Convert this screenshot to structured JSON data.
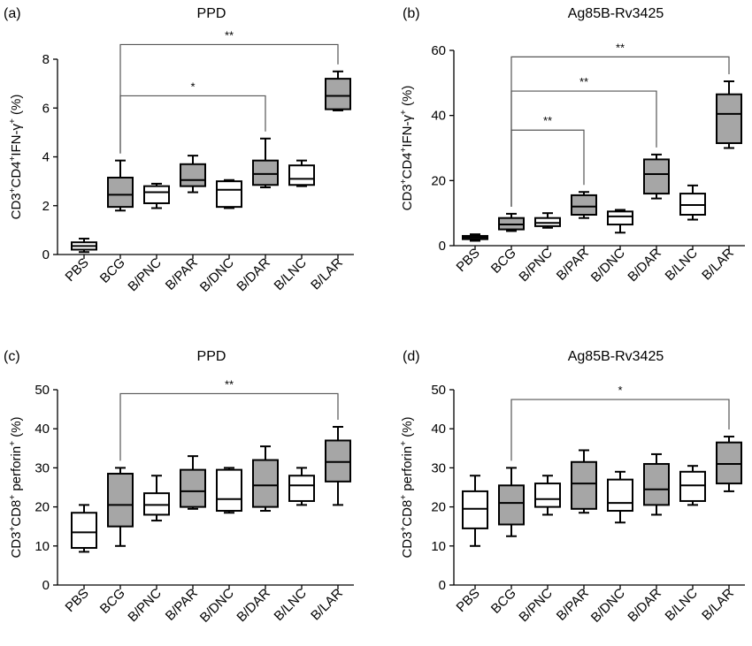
{
  "colors": {
    "filled": "#a6a6a6",
    "empty": "#ffffff",
    "stroke": "#000000",
    "bracket": "#555555"
  },
  "chart_data": [
    {
      "type": "box",
      "panel": "(a)",
      "title": "PPD",
      "ylabel": {
        "main": "CD3",
        "s1": "+",
        "mid": "CD4",
        "s2": "+",
        "rest": "IFN-γ",
        "s3": "+",
        "end": " (%)"
      },
      "ylim": [
        0,
        8
      ],
      "yticks": [
        0,
        2,
        4,
        6,
        8
      ],
      "categories": [
        "PBS",
        "BCG",
        "B/PNC",
        "B/PAR",
        "B/DNC",
        "B/DAR",
        "B/LNC",
        "B/LAR"
      ],
      "filled": [
        false,
        true,
        false,
        true,
        false,
        true,
        false,
        true
      ],
      "boxes": [
        {
          "min": 0.1,
          "q1": 0.2,
          "median": 0.35,
          "q3": 0.5,
          "max": 0.65
        },
        {
          "min": 1.8,
          "q1": 1.95,
          "median": 2.45,
          "q3": 3.15,
          "max": 3.85
        },
        {
          "min": 1.9,
          "q1": 2.1,
          "median": 2.55,
          "q3": 2.8,
          "max": 2.9
        },
        {
          "min": 2.55,
          "q1": 2.8,
          "median": 3.05,
          "q3": 3.7,
          "max": 4.05
        },
        {
          "min": 1.9,
          "q1": 1.95,
          "median": 2.65,
          "q3": 3.0,
          "max": 3.05
        },
        {
          "min": 2.75,
          "q1": 2.85,
          "median": 3.3,
          "q3": 3.85,
          "max": 4.75
        },
        {
          "min": 2.8,
          "q1": 2.85,
          "median": 3.1,
          "q3": 3.65,
          "max": 3.85
        },
        {
          "min": 5.9,
          "q1": 5.95,
          "median": 6.5,
          "q3": 7.2,
          "max": 7.5
        }
      ],
      "brackets": [
        {
          "from": 1,
          "to": 7,
          "y": 8.6,
          "label": "**"
        },
        {
          "from": 1,
          "to": 5,
          "y": 6.5,
          "label": "*"
        }
      ]
    },
    {
      "type": "box",
      "panel": "(b)",
      "title": "Ag85B-Rv3425",
      "ylabel": {
        "main": "CD3",
        "s1": "+",
        "mid": "CD4",
        "s2": "+",
        "rest": "IFN-γ",
        "s3": "+",
        "end": " (%)"
      },
      "ylim": [
        0,
        60
      ],
      "yticks": [
        0,
        20,
        40,
        60
      ],
      "categories": [
        "PBS",
        "BCG",
        "B/PNC",
        "B/PAR",
        "B/DNC",
        "B/DAR",
        "B/LNC",
        "B/LAR"
      ],
      "filled": [
        true,
        true,
        false,
        true,
        false,
        true,
        false,
        true
      ],
      "boxes": [
        {
          "min": 1.5,
          "q1": 2.0,
          "median": 2.5,
          "q3": 3.0,
          "max": 3.5
        },
        {
          "min": 4.5,
          "q1": 5.0,
          "median": 6.5,
          "q3": 8.5,
          "max": 9.8
        },
        {
          "min": 5.5,
          "q1": 6.0,
          "median": 7.0,
          "q3": 8.5,
          "max": 10.0
        },
        {
          "min": 8.5,
          "q1": 9.5,
          "median": 12.0,
          "q3": 15.5,
          "max": 16.5
        },
        {
          "min": 4.0,
          "q1": 6.5,
          "median": 9.0,
          "q3": 10.5,
          "max": 11.0
        },
        {
          "min": 14.5,
          "q1": 16.0,
          "median": 22.0,
          "q3": 26.5,
          "max": 28.0
        },
        {
          "min": 8.0,
          "q1": 9.5,
          "median": 12.5,
          "q3": 16.0,
          "max": 18.5
        },
        {
          "min": 30.0,
          "q1": 31.5,
          "median": 40.5,
          "q3": 46.5,
          "max": 50.5
        }
      ],
      "brackets": [
        {
          "from": 1,
          "to": 7,
          "y": 58.0,
          "label": "**"
        },
        {
          "from": 1,
          "to": 5,
          "y": 47.5,
          "label": "**"
        },
        {
          "from": 1,
          "to": 3,
          "y": 35.5,
          "label": "**"
        }
      ]
    },
    {
      "type": "box",
      "panel": "(c)",
      "title": "PPD",
      "ylabel": {
        "main": "CD3",
        "s1": "+",
        "mid": "CD8",
        "s2": "+",
        "rest": " perforin",
        "s3": "+",
        "end": " (%)"
      },
      "ylim": [
        0,
        50
      ],
      "yticks": [
        0,
        10,
        20,
        30,
        40,
        50
      ],
      "categories": [
        "PBS",
        "BCG",
        "B/PNC",
        "B/PAR",
        "B/DNC",
        "B/DAR",
        "B/LNC",
        "B/LAR"
      ],
      "filled": [
        false,
        true,
        false,
        true,
        false,
        true,
        false,
        true
      ],
      "boxes": [
        {
          "min": 8.5,
          "q1": 9.5,
          "median": 13.5,
          "q3": 18.5,
          "max": 20.5
        },
        {
          "min": 10.0,
          "q1": 15.0,
          "median": 20.5,
          "q3": 28.5,
          "max": 30.0
        },
        {
          "min": 16.5,
          "q1": 18.0,
          "median": 20.5,
          "q3": 23.5,
          "max": 28.0
        },
        {
          "min": 19.5,
          "q1": 20.0,
          "median": 24.0,
          "q3": 29.5,
          "max": 33.0
        },
        {
          "min": 18.5,
          "q1": 19.0,
          "median": 22.0,
          "q3": 29.5,
          "max": 30.0
        },
        {
          "min": 19.0,
          "q1": 20.0,
          "median": 25.5,
          "q3": 32.0,
          "max": 35.5
        },
        {
          "min": 20.5,
          "q1": 21.5,
          "median": 25.5,
          "q3": 28.0,
          "max": 30.0
        },
        {
          "min": 20.5,
          "q1": 26.5,
          "median": 31.5,
          "q3": 37.0,
          "max": 40.5
        }
      ],
      "brackets": [
        {
          "from": 1,
          "to": 7,
          "y": 49.0,
          "label": "**"
        }
      ]
    },
    {
      "type": "box",
      "panel": "(d)",
      "title": "Ag85B-Rv3425",
      "ylabel": {
        "main": "CD3",
        "s1": "+",
        "mid": "CD8",
        "s2": "+",
        "rest": " perforin",
        "s3": "+",
        "end": " (%)"
      },
      "ylim": [
        0,
        50
      ],
      "yticks": [
        0,
        10,
        20,
        30,
        40,
        50
      ],
      "categories": [
        "PBS",
        "BCG",
        "B/PNC",
        "B/PAR",
        "B/DNC",
        "B/DAR",
        "B/LNC",
        "B/LAR"
      ],
      "filled": [
        false,
        true,
        false,
        true,
        false,
        true,
        false,
        true
      ],
      "boxes": [
        {
          "min": 10.0,
          "q1": 14.5,
          "median": 19.5,
          "q3": 24.0,
          "max": 28.0
        },
        {
          "min": 12.5,
          "q1": 15.5,
          "median": 21.0,
          "q3": 25.5,
          "max": 30.0
        },
        {
          "min": 18.0,
          "q1": 20.0,
          "median": 22.0,
          "q3": 26.0,
          "max": 28.0
        },
        {
          "min": 18.5,
          "q1": 19.5,
          "median": 26.0,
          "q3": 31.5,
          "max": 34.5
        },
        {
          "min": 16.0,
          "q1": 19.0,
          "median": 21.0,
          "q3": 27.0,
          "max": 29.0
        },
        {
          "min": 18.0,
          "q1": 20.5,
          "median": 24.5,
          "q3": 31.0,
          "max": 33.5
        },
        {
          "min": 20.5,
          "q1": 21.5,
          "median": 25.5,
          "q3": 29.0,
          "max": 30.5
        },
        {
          "min": 24.0,
          "q1": 26.0,
          "median": 31.0,
          "q3": 36.5,
          "max": 38.0
        }
      ],
      "brackets": [
        {
          "from": 1,
          "to": 7,
          "y": 47.5,
          "label": "*"
        }
      ]
    }
  ]
}
